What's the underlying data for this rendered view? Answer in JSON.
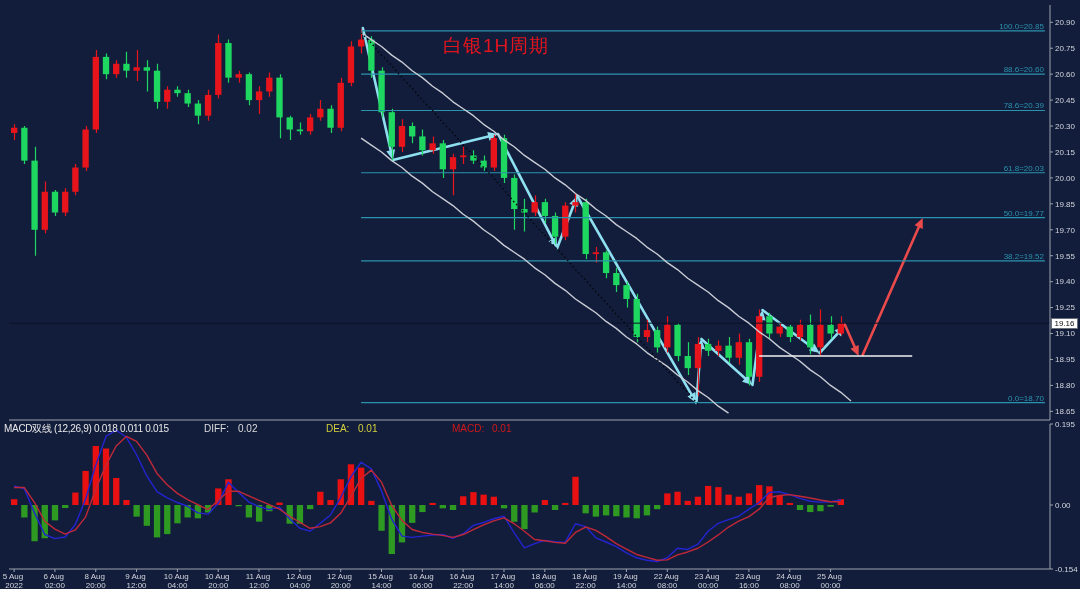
{
  "chart_data": [
    {
      "type": "candlestick",
      "title": "白银1H周期",
      "categories": [
        null,
        null,
        null,
        null,
        null,
        null,
        null,
        null,
        null,
        null,
        null,
        null,
        null,
        null,
        null,
        null,
        null,
        null,
        null,
        null,
        null,
        null,
        null,
        null,
        null,
        null,
        null,
        null,
        null,
        null,
        null,
        null,
        null,
        null,
        null,
        null,
        null,
        null,
        null,
        null,
        null,
        null,
        null,
        null,
        null,
        null,
        null,
        null,
        null,
        null,
        null,
        null,
        null,
        null,
        null,
        null,
        null,
        null,
        null,
        null,
        null,
        null,
        null,
        null,
        null,
        null,
        null,
        null,
        null,
        null,
        null,
        null,
        null,
        null,
        null,
        null,
        null,
        null,
        null,
        null,
        null,
        null,
        null,
        null,
        null,
        null,
        null,
        null,
        null,
        null,
        null,
        null,
        null,
        null,
        null,
        null,
        null,
        null,
        null,
        null,
        null,
        null
      ],
      "ohlc": [
        [
          20.26,
          20.31,
          20.22,
          20.29
        ],
        [
          20.29,
          20.3,
          20.08,
          20.1
        ],
        [
          20.1,
          20.18,
          19.55,
          19.7
        ],
        [
          19.7,
          19.98,
          19.68,
          19.92
        ],
        [
          19.92,
          19.93,
          19.78,
          19.8
        ],
        [
          19.8,
          19.94,
          19.78,
          19.92
        ],
        [
          19.92,
          20.08,
          19.9,
          20.06
        ],
        [
          20.06,
          20.3,
          20.04,
          20.28
        ],
        [
          20.28,
          20.74,
          20.26,
          20.7
        ],
        [
          20.7,
          20.72,
          20.57,
          20.6
        ],
        [
          20.6,
          20.68,
          20.58,
          20.66
        ],
        [
          20.66,
          20.73,
          20.58,
          20.62
        ],
        [
          20.62,
          20.74,
          20.56,
          20.64
        ],
        [
          20.64,
          20.68,
          20.5,
          20.62
        ],
        [
          20.62,
          20.66,
          20.4,
          20.44
        ],
        [
          20.44,
          20.53,
          20.4,
          20.51
        ],
        [
          20.51,
          20.53,
          20.47,
          20.49
        ],
        [
          20.49,
          20.51,
          20.41,
          20.43
        ],
        [
          20.43,
          20.45,
          20.31,
          20.36
        ],
        [
          20.36,
          20.51,
          20.33,
          20.48
        ],
        [
          20.48,
          20.83,
          20.46,
          20.78
        ],
        [
          20.78,
          20.8,
          20.55,
          20.58
        ],
        [
          20.58,
          20.62,
          20.55,
          20.6
        ],
        [
          20.6,
          20.61,
          20.42,
          20.45
        ],
        [
          20.45,
          20.53,
          20.37,
          20.5
        ],
        [
          20.5,
          20.61,
          20.47,
          20.58
        ],
        [
          20.58,
          20.6,
          20.23,
          20.35
        ],
        [
          20.35,
          20.36,
          20.22,
          20.28
        ],
        [
          20.28,
          20.32,
          20.25,
          20.27
        ],
        [
          20.27,
          20.37,
          20.25,
          20.35
        ],
        [
          20.35,
          20.45,
          20.33,
          20.4
        ],
        [
          20.4,
          20.42,
          20.26,
          20.29
        ],
        [
          20.29,
          20.58,
          20.27,
          20.55
        ],
        [
          20.55,
          20.79,
          20.53,
          20.76
        ],
        [
          20.76,
          20.86,
          20.72,
          20.8
        ],
        [
          20.8,
          20.82,
          20.58,
          20.62
        ],
        [
          20.62,
          20.64,
          20.35,
          20.38
        ],
        [
          20.38,
          20.4,
          20.1,
          20.18
        ],
        [
          20.18,
          20.34,
          20.15,
          20.3
        ],
        [
          20.3,
          20.32,
          20.2,
          20.24
        ],
        [
          20.24,
          20.28,
          20.13,
          20.16
        ],
        [
          20.16,
          20.24,
          20.14,
          20.2
        ],
        [
          20.2,
          20.22,
          20.0,
          20.05
        ],
        [
          20.05,
          20.14,
          19.9,
          20.12
        ],
        [
          20.12,
          20.18,
          20.08,
          20.13
        ],
        [
          20.13,
          20.16,
          20.08,
          20.1
        ],
        [
          20.1,
          20.13,
          20.04,
          20.06
        ],
        [
          20.06,
          20.25,
          20.04,
          20.23
        ],
        [
          20.23,
          20.25,
          19.97,
          20.0
        ],
        [
          20.0,
          20.02,
          19.7,
          19.82
        ],
        [
          19.82,
          19.88,
          19.69,
          19.8
        ],
        [
          19.8,
          19.9,
          19.78,
          19.86
        ],
        [
          19.86,
          19.88,
          19.74,
          19.78
        ],
        [
          19.78,
          19.8,
          19.62,
          19.66
        ],
        [
          19.66,
          19.86,
          19.64,
          19.84
        ],
        [
          19.84,
          19.91,
          19.8,
          19.86
        ],
        [
          19.86,
          19.88,
          19.53,
          19.56
        ],
        [
          19.56,
          19.6,
          19.51,
          19.57
        ],
        [
          19.57,
          19.58,
          19.42,
          19.45
        ],
        [
          19.45,
          19.48,
          19.34,
          19.38
        ],
        [
          19.38,
          19.4,
          19.25,
          19.3
        ],
        [
          19.3,
          19.33,
          19.05,
          19.08
        ],
        [
          19.08,
          19.18,
          19.05,
          19.12
        ],
        [
          19.12,
          19.14,
          18.99,
          19.02
        ],
        [
          19.02,
          19.2,
          18.99,
          19.15
        ],
        [
          19.15,
          19.16,
          18.94,
          18.97
        ],
        [
          18.97,
          19.05,
          18.86,
          18.9
        ],
        [
          18.9,
          19.08,
          18.74,
          19.04
        ],
        [
          19.04,
          19.07,
          18.97,
          19.0
        ],
        [
          19.0,
          19.06,
          18.97,
          19.03
        ],
        [
          19.03,
          19.08,
          18.93,
          18.96
        ],
        [
          18.96,
          19.1,
          18.92,
          19.05
        ],
        [
          19.05,
          19.07,
          18.8,
          18.85
        ],
        [
          18.85,
          19.24,
          18.82,
          19.2
        ],
        [
          19.2,
          19.22,
          19.07,
          19.1
        ],
        [
          19.1,
          19.16,
          19.08,
          19.14
        ],
        [
          19.14,
          19.15,
          19.05,
          19.08
        ],
        [
          19.08,
          19.18,
          19.06,
          19.15
        ],
        [
          19.15,
          19.21,
          18.98,
          19.02
        ],
        [
          19.02,
          19.24,
          18.97,
          19.15
        ],
        [
          19.15,
          19.2,
          19.07,
          19.1
        ],
        [
          19.1,
          19.2,
          19.09,
          19.16
        ],
        null,
        null,
        null,
        null,
        null,
        null,
        null,
        null,
        null,
        null,
        null,
        null,
        null,
        null,
        null,
        null,
        null,
        null,
        null,
        null
      ],
      "colors": [
        "#e8141c",
        "#1ed760",
        "#1ed760",
        "#e8141c",
        "#1ed760",
        "#e8141c",
        "#e8141c",
        "#e8141c",
        "#e8141c",
        "#1ed760",
        "#e8141c",
        "#1ed760",
        "#e8141c",
        "#1ed760",
        "#1ed760",
        "#e8141c",
        "#1ed760",
        "#1ed760",
        "#1ed760",
        "#e8141c",
        "#e8141c",
        "#1ed760",
        "#e8141c",
        "#1ed760",
        "#e8141c",
        "#e8141c",
        "#1ed760",
        "#1ed760",
        "#1ed760",
        "#e8141c",
        "#e8141c",
        "#1ed760",
        "#e8141c",
        "#e8141c",
        "#e8141c",
        "#1ed760",
        "#1ed760",
        "#1ed760",
        "#e8141c",
        "#1ed760",
        "#1ed760",
        "#e8141c",
        "#1ed760",
        "#e8141c",
        "#e8141c",
        "#1ed760",
        "#1ed760",
        "#e8141c",
        "#1ed760",
        "#1ed760",
        "#1ed760",
        "#e8141c",
        "#1ed760",
        "#1ed760",
        "#e8141c",
        "#e8141c",
        "#1ed760",
        "#e8141c",
        "#1ed760",
        "#1ed760",
        "#1ed760",
        "#1ed760",
        "#e8141c",
        "#1ed760",
        "#e8141c",
        "#1ed760",
        "#1ed760",
        "#e8141c",
        "#1ed760",
        "#e8141c",
        "#1ed760",
        "#e8141c",
        "#1ed760",
        "#e8141c",
        "#1ed760",
        "#e8141c",
        "#1ed760",
        "#e8141c",
        "#1ed760",
        "#e8141c",
        "#1ed760",
        "#e8141c",
        null,
        null,
        null,
        null,
        null,
        null,
        null,
        null,
        null,
        null,
        null,
        null,
        null,
        null,
        null,
        null,
        null,
        null,
        null,
        null
      ],
      "series": [
        {
          "type": "line",
          "color": "#c8ccd4",
          "values": [
            null,
            null,
            null,
            null,
            null,
            null,
            null,
            null,
            null,
            null,
            null,
            null,
            null,
            null,
            null,
            null,
            null,
            null,
            null,
            null,
            null,
            null,
            null,
            null,
            null,
            null,
            null,
            null,
            null,
            null,
            null,
            null,
            null,
            null,
            20.84,
            20.8,
            20.76,
            20.71,
            20.67,
            20.62,
            20.58,
            20.53,
            20.49,
            20.44,
            20.4,
            20.36,
            20.31,
            20.27,
            20.22,
            20.18,
            20.13,
            20.09,
            20.05,
            20.0,
            19.96,
            19.91,
            19.87,
            19.82,
            19.78,
            19.73,
            19.69,
            19.65,
            19.6,
            19.56,
            19.51,
            19.47,
            19.42,
            19.38,
            19.34,
            19.29,
            19.25,
            19.2,
            19.16,
            19.11,
            19.07,
            19.02,
            18.98,
            18.94,
            18.89,
            18.85,
            18.8,
            18.76,
            18.71,
            null,
            null,
            null,
            null,
            null,
            null,
            null,
            null,
            null,
            null,
            null,
            null,
            null,
            null,
            null,
            null,
            null,
            null,
            null
          ]
        },
        {
          "type": "line",
          "color": "#c8ccd4",
          "values": [
            null,
            null,
            null,
            null,
            null,
            null,
            null,
            null,
            null,
            null,
            null,
            null,
            null,
            null,
            null,
            null,
            null,
            null,
            null,
            null,
            null,
            null,
            null,
            null,
            null,
            null,
            null,
            null,
            null,
            null,
            null,
            null,
            null,
            null,
            20.23,
            20.19,
            20.15,
            20.1,
            20.06,
            20.01,
            19.97,
            19.92,
            19.88,
            19.84,
            19.79,
            19.75,
            19.7,
            19.66,
            19.61,
            19.57,
            19.53,
            19.48,
            19.44,
            19.39,
            19.35,
            19.3,
            19.26,
            19.22,
            19.17,
            19.13,
            19.08,
            19.04,
            18.99,
            18.95,
            18.91,
            18.86,
            18.82,
            18.77,
            18.73,
            18.68,
            18.64,
            null,
            null,
            null,
            null,
            null,
            null,
            null,
            null,
            null,
            null,
            null,
            null,
            null,
            null,
            null,
            null,
            null,
            null,
            null,
            null,
            null,
            null,
            null,
            null,
            null,
            null,
            null,
            null,
            null,
            null,
            null
          ]
        },
        {
          "type": "line",
          "color": "#05070d",
          "line_style": "dotted",
          "values": [
            null,
            null,
            null,
            null,
            null,
            null,
            null,
            null,
            null,
            null,
            null,
            null,
            null,
            null,
            null,
            null,
            null,
            null,
            null,
            null,
            null,
            null,
            null,
            null,
            null,
            null,
            null,
            null,
            null,
            null,
            null,
            null,
            null,
            null,
            20.84,
            20.78,
            20.71,
            20.65,
            20.58,
            20.52,
            20.45,
            20.39,
            20.32,
            20.26,
            20.19,
            20.13,
            20.06,
            20.0,
            19.93,
            19.86,
            19.8,
            19.73,
            19.67,
            19.6,
            19.54,
            19.47,
            19.41,
            19.34,
            19.28,
            19.21,
            19.15,
            19.08,
            19.02,
            18.95,
            18.89,
            18.82,
            18.76,
            18.69,
            null,
            null,
            null,
            null,
            null,
            null,
            null,
            null,
            null,
            null,
            null,
            null,
            null,
            null,
            null,
            null,
            null,
            null,
            null,
            null,
            null,
            null,
            null,
            null,
            null,
            null,
            null,
            null,
            null,
            null,
            null,
            null,
            null,
            null
          ]
        },
        {
          "type": "line",
          "color": "#f2f2f2",
          "values": [
            null,
            null,
            null,
            null,
            null,
            null,
            null,
            null,
            null,
            null,
            null,
            null,
            null,
            null,
            null,
            null,
            null,
            null,
            null,
            null,
            null,
            null,
            null,
            null,
            null,
            null,
            null,
            null,
            null,
            null,
            null,
            null,
            null,
            null,
            null,
            null,
            null,
            null,
            null,
            null,
            null,
            null,
            null,
            null,
            null,
            null,
            null,
            null,
            null,
            null,
            null,
            null,
            null,
            null,
            null,
            null,
            null,
            null,
            null,
            null,
            null,
            null,
            null,
            null,
            null,
            null,
            null,
            null,
            null,
            null,
            null,
            null,
            null,
            18.97,
            18.97,
            18.97,
            18.97,
            18.97,
            18.97,
            18.97,
            18.97,
            18.97,
            18.97,
            18.97,
            18.97,
            18.97,
            18.97,
            18.97,
            18.97,
            null,
            null,
            null,
            null,
            null,
            null,
            null,
            null,
            null,
            null,
            null,
            null,
            null
          ]
        }
      ],
      "ylim": [
        18.6,
        21.0
      ],
      "yticks": [
        18.65,
        {
          "value": 18.8,
          "label": "18.80"
        },
        18.95,
        {
          "value": 19.1,
          "label": "19.10"
        },
        19.25,
        {
          "value": 19.4,
          "label": "19.40"
        },
        19.55,
        {
          "value": 19.7,
          "label": "19.70"
        },
        19.85,
        {
          "value": 20.0,
          "label": "20.00"
        },
        20.15,
        {
          "value": 20.3,
          "label": "20.30"
        },
        20.45,
        {
          "value": 20.6,
          "label": "20.60"
        },
        20.75,
        {
          "value": 20.9,
          "label": "20.90"
        }
      ],
      "ref_lines": [
        {
          "axis": "y",
          "value": 20.85,
          "label": "100.0=20.85",
          "color": "#2b93ad"
        },
        {
          "axis": "y",
          "value": 20.6,
          "label": "88.6=20.60",
          "color": "#2b93ad"
        },
        {
          "axis": "y",
          "value": 20.39,
          "label": "78.6=20.39",
          "color": "#2b93ad"
        },
        {
          "axis": "y",
          "value": 20.03,
          "label": "61.8=20.03",
          "color": "#2b93ad"
        },
        {
          "axis": "y",
          "value": 19.77,
          "label": "50.0=19.77",
          "color": "#2b93ad"
        },
        {
          "axis": "y",
          "value": 19.52,
          "label": "38.2=19.52",
          "color": "#2b93ad"
        },
        {
          "axis": "y",
          "value": 18.7,
          "label": "0.0=18.70",
          "color": "#2b93ad"
        },
        {
          "axis": "y",
          "value": 19.16,
          "color": "#0a1228"
        }
      ],
      "annotations": [
        {
          "text": "19.16",
          "y": 19.16
        }
      ]
    },
    {
      "type": "bar",
      "title": "MACD双线 (12,26,9) 0.018 0.011 0.015",
      "categories": [
        "5 Aug 2022",
        null,
        null,
        null,
        "6 Aug 02:00",
        null,
        null,
        null,
        "8 Aug 20:00",
        null,
        null,
        null,
        "9 Aug 12:00",
        null,
        null,
        null,
        "10 Aug 04:00",
        null,
        null,
        null,
        "10 Aug 20:00",
        null,
        null,
        null,
        "11 Aug 12:00",
        null,
        null,
        null,
        "12 Aug 04:00",
        null,
        null,
        null,
        "12 Aug 20:00",
        null,
        null,
        null,
        "15 Aug 14:00",
        null,
        null,
        null,
        "16 Aug 06:00",
        null,
        null,
        null,
        "16 Aug 22:00",
        null,
        null,
        null,
        "17 Aug 14:00",
        null,
        null,
        null,
        "18 Aug 06:00",
        null,
        null,
        null,
        "18 Aug 22:00",
        null,
        null,
        null,
        "19 Aug 14:00",
        null,
        null,
        null,
        "22 Aug 08:00",
        null,
        null,
        null,
        "23 Aug 00:00",
        null,
        null,
        null,
        "23 Aug 16:00",
        null,
        null,
        null,
        "24 Aug 08:00",
        null,
        null,
        null,
        "25 Aug 00:00",
        null,
        null,
        null,
        null,
        null,
        null,
        null,
        null,
        null,
        null,
        null,
        null,
        null,
        null,
        null,
        null,
        null,
        null,
        null,
        null,
        null
      ],
      "series": [
        {
          "values": [
            0.014,
            -0.03,
            -0.087,
            -0.08,
            -0.037,
            -0.007,
            0.03,
            0.082,
            0.142,
            0.136,
            0.065,
            0.012,
            -0.028,
            -0.05,
            -0.078,
            -0.07,
            -0.044,
            -0.03,
            -0.032,
            -0.018,
            0.04,
            0.062,
            -0.003,
            -0.03,
            -0.04,
            -0.015,
            0.006,
            -0.045,
            -0.045,
            -0.01,
            0.032,
            0.012,
            0.062,
            0.098,
            0.09,
            0.01,
            -0.062,
            -0.118,
            -0.09,
            -0.043,
            -0.017,
            0.005,
            -0.008,
            -0.012,
            0.021,
            0.031,
            0.025,
            0.02,
            -0.008,
            -0.04,
            -0.058,
            -0.018,
            0.012,
            -0.012,
            0.005,
            0.068,
            -0.02,
            -0.028,
            -0.025,
            -0.027,
            -0.03,
            -0.032,
            -0.025,
            -0.01,
            0.028,
            0.032,
            0.01,
            0.02,
            0.046,
            0.043,
            0.025,
            0.02,
            0.028,
            0.048,
            0.045,
            0.022,
            0.005,
            -0.012,
            -0.017,
            -0.015,
            -0.004,
            0.014,
            null,
            null,
            null,
            null,
            null,
            null,
            null,
            null,
            null,
            null,
            null,
            null,
            null,
            null,
            null,
            null,
            null,
            null,
            null,
            null
          ],
          "colors": [
            "#e81010",
            "#2e9a22",
            "#2e9a22",
            "#2e9a22",
            "#2e9a22",
            "#2e9a22",
            "#e81010",
            "#e81010",
            "#e81010",
            "#e81010",
            "#e81010",
            "#e81010",
            "#2e9a22",
            "#2e9a22",
            "#2e9a22",
            "#2e9a22",
            "#2e9a22",
            "#2e9a22",
            "#2e9a22",
            "#2e9a22",
            "#e81010",
            "#e81010",
            "#2e9a22",
            "#2e9a22",
            "#2e9a22",
            "#2e9a22",
            "#e81010",
            "#2e9a22",
            "#2e9a22",
            "#2e9a22",
            "#e81010",
            "#e81010",
            "#e81010",
            "#e81010",
            "#e81010",
            "#e81010",
            "#2e9a22",
            "#2e9a22",
            "#2e9a22",
            "#2e9a22",
            "#2e9a22",
            "#e81010",
            "#2e9a22",
            "#2e9a22",
            "#e81010",
            "#e81010",
            "#e81010",
            "#e81010",
            "#2e9a22",
            "#2e9a22",
            "#2e9a22",
            "#2e9a22",
            "#e81010",
            "#2e9a22",
            "#e81010",
            "#e81010",
            "#2e9a22",
            "#2e9a22",
            "#2e9a22",
            "#2e9a22",
            "#2e9a22",
            "#2e9a22",
            "#2e9a22",
            "#2e9a22",
            "#e81010",
            "#e81010",
            "#e81010",
            "#e81010",
            "#e81010",
            "#e81010",
            "#e81010",
            "#e81010",
            "#e81010",
            "#e81010",
            "#e81010",
            "#e81010",
            "#e81010",
            "#2e9a22",
            "#2e9a22",
            "#2e9a22",
            "#2e9a22",
            "#e81010",
            null,
            null,
            null,
            null,
            null,
            null,
            null,
            null,
            null,
            null,
            null,
            null,
            null,
            null,
            null,
            null,
            null,
            null,
            null,
            null
          ]
        },
        {
          "type": "line",
          "color": "#2424d0",
          "values": [
            0.046,
            0.039,
            -0.019,
            -0.071,
            -0.081,
            -0.077,
            -0.047,
            0.014,
            0.096,
            0.165,
            0.18,
            0.163,
            0.121,
            0.07,
            0.032,
            0.017,
            0.006,
            -0.003,
            -0.019,
            -0.022,
            0.004,
            0.055,
            0.03,
            0.007,
            -0.004,
            -0.011,
            -0.005,
            -0.033,
            -0.056,
            -0.063,
            -0.044,
            -0.024,
            0.018,
            0.068,
            0.103,
            0.087,
            0.034,
            -0.034,
            -0.075,
            -0.078,
            -0.075,
            -0.072,
            -0.071,
            -0.08,
            -0.069,
            -0.049,
            -0.042,
            -0.033,
            -0.027,
            -0.067,
            -0.103,
            -0.093,
            -0.085,
            -0.088,
            -0.09,
            -0.045,
            -0.052,
            -0.079,
            -0.089,
            -0.1,
            -0.115,
            -0.127,
            -0.133,
            -0.136,
            -0.127,
            -0.104,
            -0.107,
            -0.094,
            -0.063,
            -0.044,
            -0.035,
            -0.027,
            -0.01,
            0.006,
            0.03,
            0.032,
            0.025,
            0.016,
            0.009,
            0.007,
            0.008,
            0.012,
            null,
            null,
            null,
            null,
            null,
            null,
            null,
            null,
            null,
            null,
            null,
            null,
            null,
            null,
            null,
            null,
            null,
            null,
            null,
            null
          ]
        },
        {
          "type": "line",
          "color": "#c02838",
          "values": [
            0.042,
            0.042,
            0.006,
            -0.039,
            -0.058,
            -0.07,
            -0.06,
            -0.029,
            0.038,
            0.096,
            0.142,
            0.165,
            0.153,
            0.12,
            0.076,
            0.049,
            0.028,
            0.013,
            0.001,
            -0.011,
            0.011,
            0.033,
            0.033,
            0.022,
            0.011,
            0.001,
            -0.01,
            -0.027,
            -0.042,
            -0.056,
            -0.052,
            -0.043,
            -0.02,
            0.021,
            0.064,
            0.084,
            0.055,
            -0.001,
            -0.037,
            -0.059,
            -0.066,
            -0.07,
            -0.073,
            -0.078,
            -0.071,
            -0.059,
            -0.048,
            -0.038,
            -0.031,
            -0.045,
            -0.063,
            -0.083,
            -0.086,
            -0.09,
            -0.092,
            -0.066,
            -0.053,
            -0.061,
            -0.076,
            -0.093,
            -0.106,
            -0.119,
            -0.126,
            -0.133,
            -0.132,
            -0.12,
            -0.113,
            -0.104,
            -0.089,
            -0.072,
            -0.053,
            -0.039,
            -0.028,
            -0.01,
            0.018,
            0.023,
            0.025,
            0.021,
            0.017,
            0.012,
            0.008,
            0.008,
            null,
            null,
            null,
            null,
            null,
            null,
            null,
            null,
            null,
            null,
            null,
            null,
            null,
            null,
            null,
            null,
            null,
            null,
            null,
            null
          ]
        }
      ],
      "ylim": [
        -0.154,
        0.195
      ],
      "yticks": [
        -0.154,
        {
          "value": 0,
          "label": "0.00"
        },
        0.195
      ],
      "annotations": [
        "DIFF:",
        "0.02",
        "DEA:",
        "0.01",
        "MACD:",
        "0.01"
      ]
    }
  ]
}
